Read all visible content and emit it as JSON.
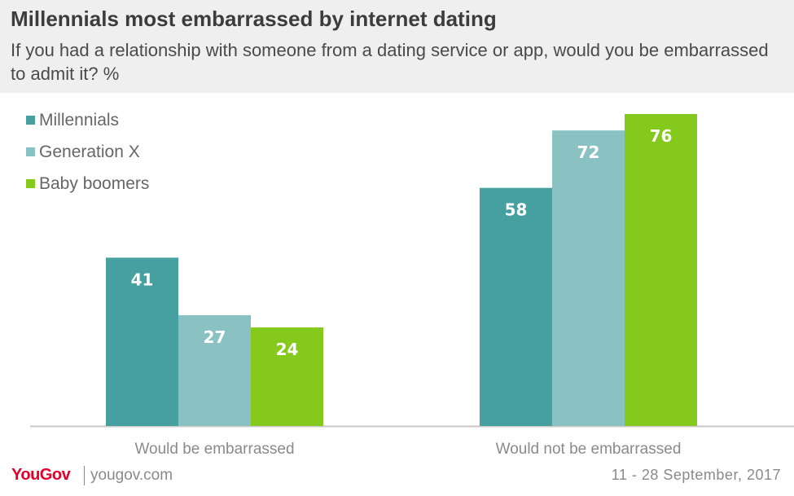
{
  "header": {
    "title": "Millennials most embarrassed by internet dating",
    "subtitle": "If you had a relationship with someone from a dating service or app, would you be embarrassed to admit it? %"
  },
  "colors": {
    "header_bg": "#efefef",
    "axis": "#c8c8c8",
    "label_on_bar": "#ffffff"
  },
  "chart_data": {
    "type": "bar",
    "title": "Millennials most embarrassed by internet dating",
    "subtitle": "If you had a relationship with someone from a dating service or app, would you be embarrassed to admit it? %",
    "categories": [
      "Would be embarrassed",
      "Would not be embarrassed"
    ],
    "series": [
      {
        "name": "Millennials",
        "color": "#46a0a0",
        "values": [
          41,
          58
        ]
      },
      {
        "name": "Generation X",
        "color": "#8ac2c3",
        "values": [
          27,
          72
        ]
      },
      {
        "name": "Baby boomers",
        "color": "#84c91b",
        "values": [
          24,
          76
        ]
      }
    ],
    "ylim": [
      0,
      76
    ],
    "grid": false,
    "legend": "top-left",
    "data_labels": true
  },
  "footer": {
    "brand": "YouGov",
    "url": "yougov.com",
    "date": "11 - 28 September, 2017"
  }
}
